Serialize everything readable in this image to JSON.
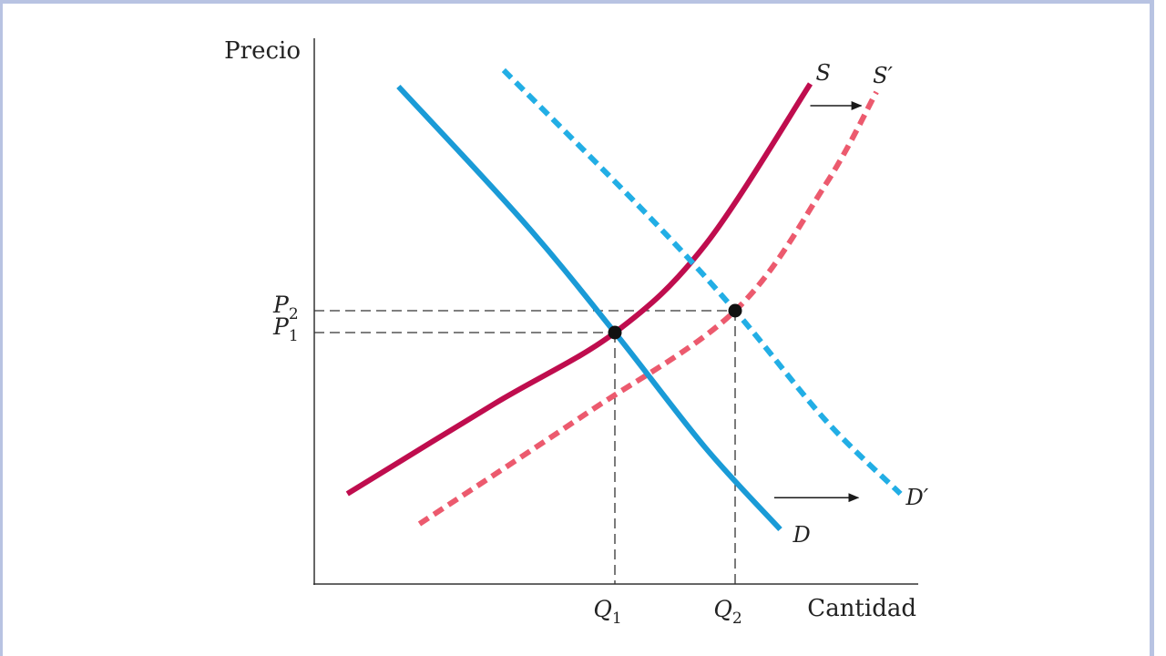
{
  "chart_data": {
    "type": "line",
    "xlabel": "Cantidad",
    "ylabel": "Precio",
    "x_ticks": [
      {
        "main": "Q",
        "sub": "1",
        "x": 5.0
      },
      {
        "main": "Q",
        "sub": "2",
        "x": 7.0
      }
    ],
    "y_ticks": [
      {
        "main": "P",
        "sub": "2",
        "y": 5.0
      },
      {
        "main": "P",
        "sub": "1",
        "y": 4.6
      }
    ],
    "xlim": [
      0,
      10
    ],
    "ylim": [
      0,
      10
    ],
    "series": [
      {
        "name": "S",
        "style": "solid",
        "color": "#bf0d4e",
        "points": [
          [
            0.55,
            1.65
          ],
          [
            3.0,
            3.3
          ],
          [
            5.0,
            4.6
          ],
          [
            6.5,
            6.2
          ],
          [
            8.25,
            9.15
          ]
        ]
      },
      {
        "name": "S′",
        "style": "dashed",
        "color": "#ec5a6e",
        "points": [
          [
            1.75,
            1.1
          ],
          [
            4.5,
            3.1
          ],
          [
            7.0,
            5.0
          ],
          [
            8.5,
            7.3
          ],
          [
            9.35,
            9.0
          ]
        ]
      },
      {
        "name": "D",
        "style": "solid",
        "color": "#1a9bd7",
        "points": [
          [
            1.4,
            9.1
          ],
          [
            3.5,
            6.6
          ],
          [
            5.0,
            4.6
          ],
          [
            6.5,
            2.5
          ],
          [
            7.75,
            1.0
          ]
        ]
      },
      {
        "name": "D′",
        "style": "dashed",
        "color": "#22aee5",
        "points": [
          [
            3.15,
            9.4
          ],
          [
            5.5,
            6.8
          ],
          [
            7.0,
            5.0
          ],
          [
            8.5,
            3.0
          ],
          [
            9.75,
            1.65
          ]
        ]
      }
    ],
    "equilibria": [
      {
        "x": 5.0,
        "y": 4.6
      },
      {
        "x": 7.0,
        "y": 5.0
      }
    ],
    "shift_arrows": [
      {
        "from": [
          8.25,
          8.75
        ],
        "to": [
          9.1,
          8.75
        ]
      },
      {
        "from": [
          7.65,
          1.58
        ],
        "to": [
          9.05,
          1.58
        ]
      }
    ],
    "grid": false,
    "legend": "none"
  }
}
